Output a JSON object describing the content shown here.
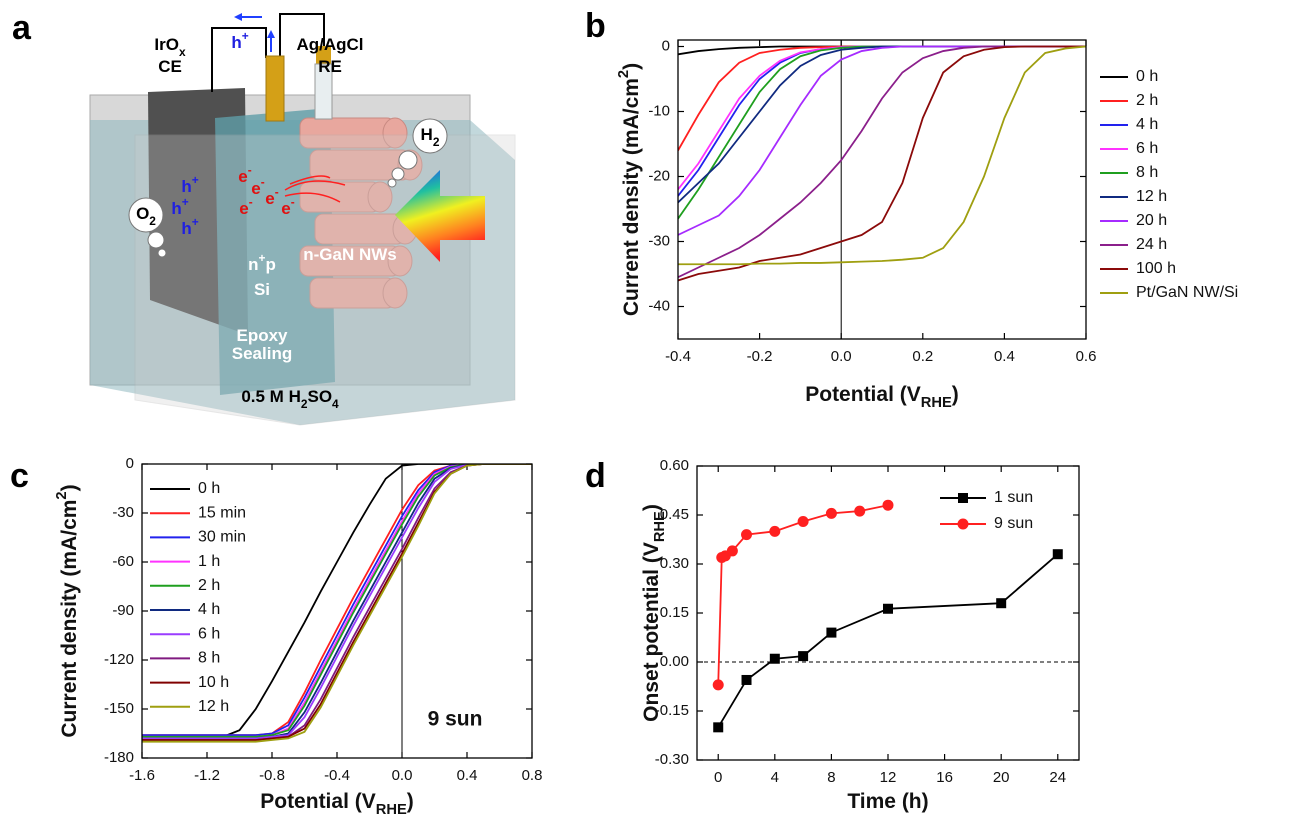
{
  "diagram": {
    "panel_label": "a",
    "labels": [
      [
        "IrO",
        {
          "sub": "x"
        }
      ],
      [
        "CE"
      ],
      [
        "h",
        {
          "sup": "+"
        }
      ],
      [
        "Ag/AgCl"
      ],
      [
        "RE"
      ],
      [
        "H",
        {
          "sub": "2"
        }
      ],
      [
        "O",
        {
          "sub": "2"
        }
      ],
      [
        "h",
        {
          "sup": "+"
        }
      ],
      [
        "h",
        {
          "sup": "+"
        }
      ],
      [
        "h",
        {
          "sup": "+"
        }
      ],
      [
        "e",
        {
          "sup": "-"
        }
      ],
      [
        "e",
        {
          "sup": "-"
        }
      ],
      [
        "e",
        {
          "sup": "-"
        }
      ],
      [
        "e",
        {
          "sup": "-"
        }
      ],
      [
        "e",
        {
          "sup": "-"
        }
      ],
      [
        "n",
        {
          "sup": "+"
        },
        "p"
      ],
      [
        "Si"
      ],
      [
        "n-GaN NWs"
      ],
      [
        "Epoxy"
      ],
      [
        "Sealing"
      ],
      [
        "0.5 M H",
        {
          "sub": "2"
        },
        "SO",
        {
          "sub": "4"
        }
      ]
    ]
  },
  "chart_data": [
    {
      "type": "line",
      "panel_label": "b",
      "x_label": [
        "Potential (V",
        {
          "sub": "RHE"
        },
        ")"
      ],
      "y_label": [
        "Current density (mA/cm",
        {
          "sup": "2"
        },
        ")"
      ],
      "xlim": [
        -0.4,
        0.6
      ],
      "ylim": [
        -45,
        1
      ],
      "xticks": [
        -0.4,
        -0.2,
        {
          "value": 0,
          "label": "0.0"
        },
        0.2,
        0.4,
        0.6
      ],
      "yticks": [
        0,
        -10,
        -20,
        -30,
        -40
      ],
      "vline": 0,
      "legend": "outside right",
      "x": [
        -0.4,
        -0.35,
        -0.3,
        -0.25,
        -0.2,
        -0.15,
        -0.1,
        -0.05,
        0,
        0.05,
        0.1,
        0.15,
        0.2,
        0.25,
        0.3,
        0.35,
        0.4,
        0.45,
        0.5,
        0.55,
        0.6
      ],
      "series": [
        {
          "name": "0 h",
          "color": "#000000",
          "values": [
            -1.2,
            -0.7,
            -0.4,
            -0.2,
            -0.1,
            0,
            0,
            0,
            0,
            0,
            0,
            0,
            0,
            0,
            0,
            0,
            0,
            0,
            0,
            0,
            0
          ]
        },
        {
          "name": "2 h",
          "color": "#ff2020",
          "values": [
            -16,
            -10.5,
            -5.5,
            -2.5,
            -1,
            -0.5,
            -0.2,
            -0.1,
            0,
            0,
            0,
            0,
            0,
            0,
            0,
            0,
            0,
            0,
            0,
            0,
            0
          ]
        },
        {
          "name": "4 h",
          "color": "#2222ee",
          "values": [
            -23,
            -19,
            -14,
            -9,
            -5,
            -2.5,
            -1,
            -0.4,
            -0.1,
            0,
            0,
            0,
            0,
            0,
            0,
            0,
            0,
            0,
            0,
            0,
            0
          ]
        },
        {
          "name": "6 h",
          "color": "#ff33ff",
          "values": [
            -22,
            -18,
            -13,
            -8,
            -4.5,
            -2.2,
            -0.9,
            -0.4,
            -0.1,
            0,
            0,
            0,
            0,
            0,
            0,
            0,
            0,
            0,
            0,
            0,
            0
          ]
        },
        {
          "name": "8 h",
          "color": "#1f9f1f",
          "values": [
            -26.5,
            -22,
            -17,
            -12,
            -7,
            -3.5,
            -1.5,
            -0.6,
            -0.2,
            0,
            0,
            0,
            0,
            0,
            0,
            0,
            0,
            0,
            0,
            0,
            0
          ]
        },
        {
          "name": "12 h",
          "color": "#102a80",
          "values": [
            -24,
            -21,
            -18,
            -14,
            -10,
            -6,
            -3,
            -1.3,
            -0.5,
            -0.2,
            0,
            0,
            0,
            0,
            0,
            0,
            0,
            0,
            0,
            0,
            0
          ]
        },
        {
          "name": "20 h",
          "color": "#a62bff",
          "values": [
            -29,
            -27.5,
            -26,
            -23,
            -19,
            -14,
            -9,
            -4.5,
            -2,
            -0.7,
            -0.2,
            0,
            0,
            0,
            0,
            0,
            0,
            0,
            0,
            0,
            0
          ]
        },
        {
          "name": "24 h",
          "color": "#8b1f8b",
          "values": [
            -35.5,
            -34,
            -32.5,
            -31,
            -29,
            -26.5,
            -24,
            -21,
            -17.5,
            -13,
            -8,
            -4,
            -1.8,
            -0.7,
            -0.2,
            0,
            0,
            0,
            0,
            0,
            0
          ]
        },
        {
          "name": "100 h",
          "color": "#8b0a0a",
          "values": [
            -36,
            -35,
            -34.5,
            -34,
            -33,
            -32.5,
            -32,
            -31,
            -30,
            -29,
            -27,
            -21,
            -11,
            -4,
            -1.5,
            -0.5,
            -0.1,
            0,
            0,
            0,
            0
          ]
        },
        {
          "name": "Pt/GaN NW/Si",
          "color": "#9f9f10",
          "values": [
            -33.5,
            -33.5,
            -33.5,
            -33.5,
            -33.4,
            -33.4,
            -33.3,
            -33.3,
            -33.2,
            -33.1,
            -33,
            -32.8,
            -32.5,
            -31,
            -27,
            -20,
            -11,
            -4,
            -1,
            -0.3,
            0
          ]
        }
      ]
    },
    {
      "type": "line",
      "panel_label": "c",
      "x_label": [
        "Potential (V",
        {
          "sub": "RHE"
        },
        ")"
      ],
      "y_label": [
        "Current density (mA/cm",
        {
          "sup": "2"
        },
        ")"
      ],
      "xlim": [
        -1.6,
        0.8
      ],
      "ylim": [
        -180,
        0
      ],
      "xticks": [
        -1.6,
        -1.2,
        -0.8,
        -0.4,
        {
          "value": 0,
          "label": "0.0"
        },
        0.4,
        0.8
      ],
      "yticks": [
        0,
        -30,
        -60,
        -90,
        -120,
        -150,
        -180
      ],
      "vline": 0,
      "legend": "upper left",
      "annotation": "9 sun",
      "x": [
        -1.6,
        -1.5,
        -1.4,
        -1.3,
        -1.2,
        -1.1,
        -1,
        -0.9,
        -0.8,
        -0.7,
        -0.6,
        -0.5,
        -0.4,
        -0.3,
        -0.2,
        -0.1,
        0,
        0.1,
        0.2,
        0.3,
        0.4,
        0.5,
        0.6,
        0.7,
        0.8
      ],
      "series": [
        {
          "name": "0 h",
          "color": "#000000",
          "values": [
            -168,
            -168,
            -168,
            -168,
            -168,
            -167,
            -163,
            -150,
            -133,
            -115,
            -97,
            -78,
            -60,
            -42,
            -25,
            -9,
            -1,
            0,
            0,
            0,
            0,
            0,
            0,
            0,
            0
          ]
        },
        {
          "name": "15 min",
          "color": "#ff2020",
          "values": [
            -166,
            -166,
            -166,
            -166,
            -166,
            -166,
            -166,
            -166,
            -165,
            -158,
            -140,
            -120,
            -101,
            -82,
            -64,
            -46,
            -28,
            -13,
            -4,
            -1,
            0,
            0,
            0,
            0,
            0
          ]
        },
        {
          "name": "30 min",
          "color": "#2222ee",
          "values": [
            -166,
            -166,
            -166,
            -166,
            -166,
            -166,
            -166,
            -166,
            -165,
            -160,
            -143,
            -124,
            -105,
            -86,
            -68,
            -50,
            -32,
            -16,
            -5,
            -1,
            0,
            0,
            0,
            0,
            0
          ]
        },
        {
          "name": "1 h",
          "color": "#ff33ff",
          "values": [
            -167,
            -167,
            -167,
            -167,
            -167,
            -167,
            -167,
            -167,
            -166,
            -162,
            -146,
            -127,
            -108,
            -89,
            -71,
            -53,
            -35,
            -18,
            -6,
            -1.5,
            0,
            0,
            0,
            0,
            0
          ]
        },
        {
          "name": "2 h",
          "color": "#1f9f1f",
          "values": [
            -167,
            -167,
            -167,
            -167,
            -167,
            -167,
            -167,
            -167,
            -166,
            -163,
            -148,
            -129,
            -110,
            -91,
            -73,
            -55,
            -37,
            -20,
            -7,
            -2,
            0,
            0,
            0,
            0,
            0
          ]
        },
        {
          "name": "4 h",
          "color": "#102a80",
          "values": [
            -168,
            -168,
            -168,
            -168,
            -168,
            -168,
            -168,
            -168,
            -167,
            -165,
            -152,
            -134,
            -115,
            -96,
            -78,
            -60,
            -42,
            -24,
            -9,
            -2.5,
            -0.5,
            0,
            0,
            0,
            0
          ]
        },
        {
          "name": "6 h",
          "color": "#9a3cff",
          "values": [
            -168,
            -168,
            -168,
            -168,
            -168,
            -168,
            -168,
            -168,
            -167,
            -166,
            -155,
            -137,
            -118,
            -99,
            -81,
            -63,
            -45,
            -27,
            -11,
            -3,
            -0.5,
            0,
            0,
            0,
            0
          ]
        },
        {
          "name": "8 h",
          "color": "#801a80",
          "values": [
            -169,
            -169,
            -169,
            -169,
            -169,
            -169,
            -169,
            -169,
            -168,
            -167,
            -160,
            -144,
            -125,
            -106,
            -88,
            -70,
            -52,
            -33,
            -15,
            -5,
            -1,
            0,
            0,
            0,
            0
          ]
        },
        {
          "name": "10 h",
          "color": "#800000",
          "values": [
            -169,
            -169,
            -169,
            -169,
            -169,
            -169,
            -169,
            -169,
            -168,
            -167,
            -162,
            -147,
            -128,
            -109,
            -91,
            -73,
            -55,
            -36,
            -17,
            -6,
            -1,
            0,
            0,
            0,
            0
          ]
        },
        {
          "name": "12 h",
          "color": "#9f9f10",
          "values": [
            -170,
            -170,
            -170,
            -170,
            -170,
            -170,
            -170,
            -170,
            -169,
            -168,
            -164,
            -149,
            -130,
            -111,
            -93,
            -75,
            -57,
            -38,
            -18,
            -6,
            -1,
            0,
            0,
            0,
            0
          ]
        }
      ]
    },
    {
      "type": "line",
      "panel_label": "d",
      "x_label": [
        "Time (h)"
      ],
      "y_label": [
        "Onset potential (V",
        {
          "sub": "RHE"
        },
        ")"
      ],
      "xlim": [
        -1.5,
        25.5
      ],
      "ylim": [
        -0.3,
        0.6
      ],
      "xticks": [
        0,
        4,
        8,
        12,
        16,
        20,
        24
      ],
      "yticks": [
        {
          "value": 0.6,
          "label": "0.60"
        },
        {
          "value": 0.45,
          "label": "0.45"
        },
        {
          "value": 0.3,
          "label": "0.30"
        },
        {
          "value": 0.15,
          "label": "0.15"
        },
        {
          "value": 0,
          "label": "0.00"
        },
        {
          "value": -0.15,
          "label": "-0.15"
        },
        {
          "value": -0.3,
          "label": "-0.30"
        }
      ],
      "hline": 0,
      "legend": "upper right",
      "series": [
        {
          "name": "1 sun",
          "color": "#000000",
          "marker": "square",
          "x": [
            0,
            2,
            4,
            6,
            8,
            12,
            20,
            24
          ],
          "values": [
            -0.2,
            -0.055,
            0.01,
            0.018,
            0.09,
            0.163,
            0.18,
            0.33
          ]
        },
        {
          "name": "9 sun",
          "color": "#ff2020",
          "marker": "circle",
          "x": [
            0,
            0.25,
            0.5,
            1,
            2,
            4,
            6,
            8,
            10,
            12
          ],
          "values": [
            -0.07,
            0.32,
            0.325,
            0.34,
            0.39,
            0.4,
            0.43,
            0.455,
            0.462,
            0.48
          ]
        }
      ]
    }
  ]
}
